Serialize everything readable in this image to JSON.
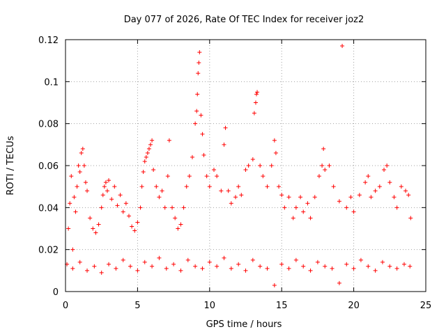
{
  "chart_data": {
    "type": "scatter",
    "title": "Day 077 of 2026, Rate Of TEC Index for receiver joz2",
    "xlabel": "GPS time / hours",
    "ylabel": "ROTI / TECUs",
    "xlim": [
      0,
      25
    ],
    "ylim": [
      0,
      0.12
    ],
    "xticks": [
      0,
      5,
      10,
      15,
      20,
      25
    ],
    "xtick_labels": [
      "0",
      "5",
      "10",
      "15",
      "20",
      "25"
    ],
    "yticks": [
      0,
      0.02,
      0.04,
      0.06,
      0.08,
      0.1,
      0.12
    ],
    "ytick_labels": [
      "0",
      "0.02",
      "0.04",
      "0.06",
      "0.08",
      "0.1",
      "0.12"
    ],
    "grid": true,
    "marker": "plus",
    "color": "#ff0000",
    "series": [
      {
        "name": "ROTI",
        "points": [
          [
            0.1,
            0.013
          ],
          [
            0.2,
            0.03
          ],
          [
            0.3,
            0.042
          ],
          [
            0.4,
            0.055
          ],
          [
            0.5,
            0.02
          ],
          [
            0.6,
            0.045
          ],
          [
            0.7,
            0.038
          ],
          [
            0.8,
            0.05
          ],
          [
            0.9,
            0.06
          ],
          [
            1.0,
            0.057
          ],
          [
            1.1,
            0.066
          ],
          [
            1.2,
            0.068
          ],
          [
            1.3,
            0.06
          ],
          [
            1.4,
            0.052
          ],
          [
            1.5,
            0.048
          ],
          [
            1.7,
            0.035
          ],
          [
            1.9,
            0.03
          ],
          [
            2.1,
            0.028
          ],
          [
            2.3,
            0.032
          ],
          [
            2.5,
            0.04
          ],
          [
            2.6,
            0.046
          ],
          [
            2.7,
            0.05
          ],
          [
            2.8,
            0.052
          ],
          [
            2.9,
            0.048
          ],
          [
            3.0,
            0.053
          ],
          [
            3.2,
            0.044
          ],
          [
            3.4,
            0.05
          ],
          [
            3.6,
            0.041
          ],
          [
            3.8,
            0.046
          ],
          [
            4.0,
            0.038
          ],
          [
            4.2,
            0.042
          ],
          [
            4.4,
            0.036
          ],
          [
            4.6,
            0.031
          ],
          [
            4.8,
            0.029
          ],
          [
            5.0,
            0.033
          ],
          [
            5.2,
            0.04
          ],
          [
            5.3,
            0.05
          ],
          [
            5.4,
            0.057
          ],
          [
            5.5,
            0.062
          ],
          [
            5.6,
            0.064
          ],
          [
            5.7,
            0.066
          ],
          [
            5.8,
            0.068
          ],
          [
            5.9,
            0.07
          ],
          [
            6.0,
            0.072
          ],
          [
            6.1,
            0.058
          ],
          [
            6.3,
            0.05
          ],
          [
            6.5,
            0.045
          ],
          [
            6.7,
            0.048
          ],
          [
            6.9,
            0.04
          ],
          [
            7.1,
            0.055
          ],
          [
            7.2,
            0.072
          ],
          [
            7.4,
            0.04
          ],
          [
            7.6,
            0.035
          ],
          [
            7.8,
            0.03
          ],
          [
            8.0,
            0.032
          ],
          [
            8.2,
            0.04
          ],
          [
            8.4,
            0.05
          ],
          [
            8.6,
            0.055
          ],
          [
            8.8,
            0.064
          ],
          [
            9.0,
            0.08
          ],
          [
            9.1,
            0.086
          ],
          [
            9.15,
            0.094
          ],
          [
            9.2,
            0.104
          ],
          [
            9.25,
            0.109
          ],
          [
            9.3,
            0.114
          ],
          [
            9.4,
            0.084
          ],
          [
            9.5,
            0.075
          ],
          [
            9.6,
            0.065
          ],
          [
            9.8,
            0.055
          ],
          [
            10.0,
            0.05
          ],
          [
            10.3,
            0.058
          ],
          [
            10.5,
            0.055
          ],
          [
            10.8,
            0.048
          ],
          [
            11.0,
            0.07
          ],
          [
            11.1,
            0.078
          ],
          [
            11.3,
            0.048
          ],
          [
            11.5,
            0.042
          ],
          [
            11.8,
            0.045
          ],
          [
            12.0,
            0.05
          ],
          [
            12.2,
            0.046
          ],
          [
            12.5,
            0.058
          ],
          [
            12.7,
            0.06
          ],
          [
            13.0,
            0.063
          ],
          [
            13.1,
            0.085
          ],
          [
            13.2,
            0.09
          ],
          [
            13.25,
            0.094
          ],
          [
            13.3,
            0.095
          ],
          [
            13.5,
            0.06
          ],
          [
            13.7,
            0.055
          ],
          [
            14.0,
            0.05
          ],
          [
            14.3,
            0.06
          ],
          [
            14.5,
            0.072
          ],
          [
            14.6,
            0.066
          ],
          [
            14.8,
            0.05
          ],
          [
            15.0,
            0.046
          ],
          [
            15.2,
            0.04
          ],
          [
            15.5,
            0.045
          ],
          [
            15.8,
            0.035
          ],
          [
            16.0,
            0.04
          ],
          [
            16.3,
            0.045
          ],
          [
            16.5,
            0.038
          ],
          [
            16.8,
            0.042
          ],
          [
            17.0,
            0.035
          ],
          [
            17.3,
            0.045
          ],
          [
            17.6,
            0.055
          ],
          [
            17.8,
            0.06
          ],
          [
            17.9,
            0.068
          ],
          [
            18.0,
            0.058
          ],
          [
            18.3,
            0.06
          ],
          [
            18.6,
            0.05
          ],
          [
            19.0,
            0.043
          ],
          [
            19.2,
            0.117
          ],
          [
            19.5,
            0.04
          ],
          [
            19.8,
            0.045
          ],
          [
            20.0,
            0.038
          ],
          [
            20.4,
            0.046
          ],
          [
            20.8,
            0.052
          ],
          [
            21.0,
            0.055
          ],
          [
            21.2,
            0.045
          ],
          [
            21.5,
            0.048
          ],
          [
            21.8,
            0.05
          ],
          [
            22.1,
            0.058
          ],
          [
            22.3,
            0.06
          ],
          [
            22.5,
            0.052
          ],
          [
            22.8,
            0.045
          ],
          [
            23.0,
            0.04
          ],
          [
            23.3,
            0.05
          ],
          [
            23.6,
            0.048
          ],
          [
            23.8,
            0.046
          ],
          [
            23.95,
            0.035
          ],
          [
            0.5,
            0.011
          ],
          [
            1.0,
            0.014
          ],
          [
            1.5,
            0.01
          ],
          [
            2.0,
            0.012
          ],
          [
            2.5,
            0.009
          ],
          [
            3.0,
            0.013
          ],
          [
            3.5,
            0.011
          ],
          [
            4.0,
            0.015
          ],
          [
            4.5,
            0.012
          ],
          [
            5.0,
            0.01
          ],
          [
            5.5,
            0.014
          ],
          [
            6.0,
            0.012
          ],
          [
            6.5,
            0.016
          ],
          [
            7.0,
            0.011
          ],
          [
            7.5,
            0.013
          ],
          [
            8.0,
            0.01
          ],
          [
            8.5,
            0.015
          ],
          [
            9.0,
            0.012
          ],
          [
            9.5,
            0.011
          ],
          [
            10.0,
            0.014
          ],
          [
            10.5,
            0.012
          ],
          [
            11.0,
            0.016
          ],
          [
            11.5,
            0.011
          ],
          [
            12.0,
            0.013
          ],
          [
            12.5,
            0.01
          ],
          [
            13.0,
            0.015
          ],
          [
            13.5,
            0.012
          ],
          [
            14.0,
            0.011
          ],
          [
            14.5,
            0.003
          ],
          [
            15.0,
            0.013
          ],
          [
            15.5,
            0.011
          ],
          [
            16.0,
            0.015
          ],
          [
            16.5,
            0.012
          ],
          [
            17.0,
            0.01
          ],
          [
            17.5,
            0.014
          ],
          [
            18.0,
            0.012
          ],
          [
            18.5,
            0.011
          ],
          [
            19.0,
            0.004
          ],
          [
            19.5,
            0.013
          ],
          [
            20.0,
            0.011
          ],
          [
            20.5,
            0.015
          ],
          [
            21.0,
            0.012
          ],
          [
            21.5,
            0.01
          ],
          [
            22.0,
            0.014
          ],
          [
            22.5,
            0.012
          ],
          [
            23.0,
            0.011
          ],
          [
            23.5,
            0.013
          ],
          [
            23.9,
            0.012
          ]
        ]
      }
    ]
  }
}
